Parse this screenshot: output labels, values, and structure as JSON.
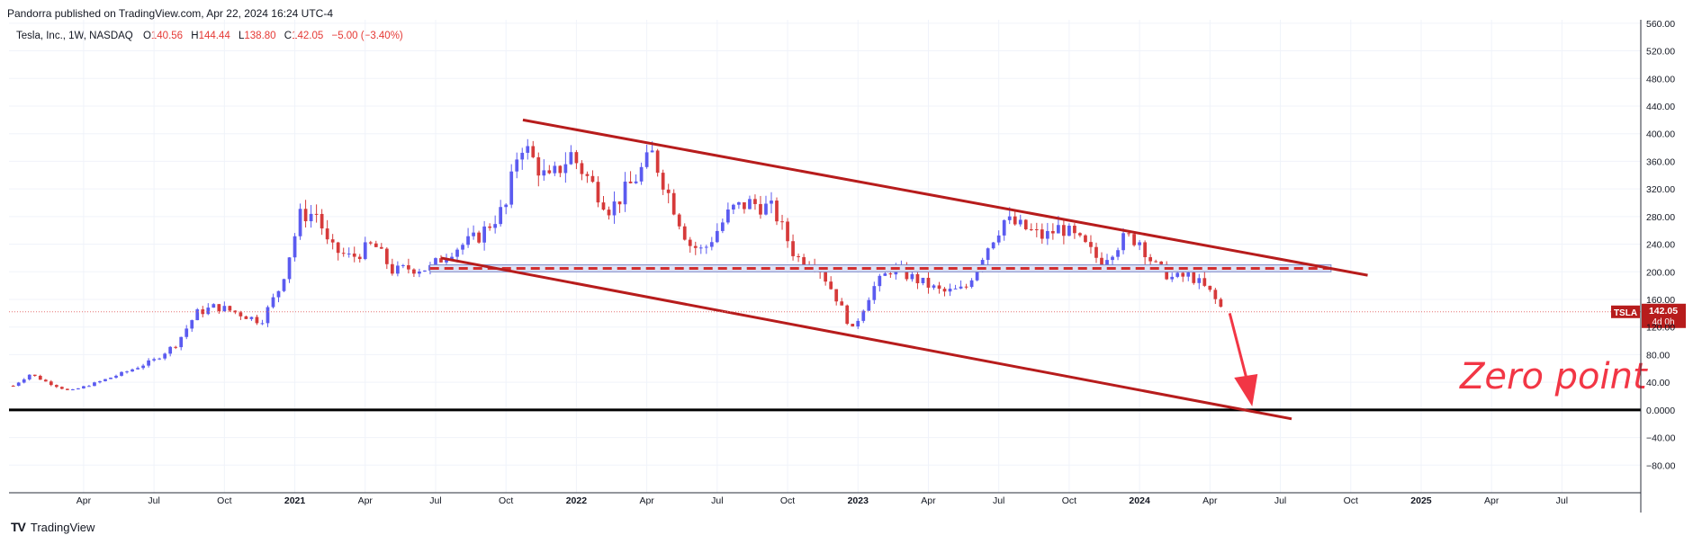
{
  "header": {
    "publisher": "Pandorra published on TradingView.com, Apr 22, 2024 16:24 UTC-4"
  },
  "legend": {
    "symbol": "Tesla, Inc., 1W, NASDAQ",
    "o_label": "O",
    "o_value": "140.56",
    "h_label": "H",
    "h_value": "144.44",
    "l_label": "L",
    "l_value": "138.80",
    "c_label": "C",
    "c_value": "142.05",
    "change": "−5.00 (−3.40%)"
  },
  "footer": {
    "logo": "TV",
    "brand": "TradingView"
  },
  "colors": {
    "up": "#5b5bf0",
    "down": "#d63a3a",
    "channel": "#b71c1c",
    "zero": "#000000",
    "arrow": "#f23645",
    "price_tag": "#b71c1c"
  },
  "chart_data": {
    "type": "candlestick",
    "title": "Tesla, Inc., 1W, NASDAQ",
    "ylim": [
      -120,
      565
    ],
    "y_ticks": [
      "560.00",
      "520.00",
      "480.00",
      "440.00",
      "400.00",
      "360.00",
      "320.00",
      "280.00",
      "240.00",
      "200.00",
      "160.00",
      "120.00",
      "80.00",
      "40.00",
      "0.0000",
      "−40.00",
      "−80.00"
    ],
    "y_tick_values": [
      560,
      520,
      480,
      440,
      400,
      360,
      320,
      280,
      240,
      200,
      160,
      120,
      80,
      40,
      0,
      -40,
      -80
    ],
    "x_ticks": [
      {
        "label": "Apr",
        "t": 2020.25
      },
      {
        "label": "Jul",
        "t": 2020.5
      },
      {
        "label": "Oct",
        "t": 2020.75
      },
      {
        "label": "2021",
        "t": 2021.0
      },
      {
        "label": "Apr",
        "t": 2021.25
      },
      {
        "label": "Jul",
        "t": 2021.5
      },
      {
        "label": "Oct",
        "t": 2021.75
      },
      {
        "label": "2022",
        "t": 2022.0
      },
      {
        "label": "Apr",
        "t": 2022.25
      },
      {
        "label": "Jul",
        "t": 2022.5
      },
      {
        "label": "Oct",
        "t": 2022.75
      },
      {
        "label": "2023",
        "t": 2023.0
      },
      {
        "label": "Apr",
        "t": 2023.25
      },
      {
        "label": "Jul",
        "t": 2023.5
      },
      {
        "label": "Oct",
        "t": 2023.75
      },
      {
        "label": "2024",
        "t": 2024.0
      },
      {
        "label": "Apr",
        "t": 2024.25
      },
      {
        "label": "Jul",
        "t": 2024.5
      },
      {
        "label": "Oct",
        "t": 2024.75
      },
      {
        "label": "2025",
        "t": 2025.0
      },
      {
        "label": "Apr",
        "t": 2025.25
      },
      {
        "label": "Jul",
        "t": 2025.5
      }
    ],
    "price_path": [
      [
        2020.0,
        35
      ],
      [
        2020.06,
        52
      ],
      [
        2020.12,
        40
      ],
      [
        2020.2,
        27
      ],
      [
        2020.3,
        40
      ],
      [
        2020.4,
        55
      ],
      [
        2020.5,
        72
      ],
      [
        2020.58,
        96
      ],
      [
        2020.65,
        140
      ],
      [
        2020.72,
        150
      ],
      [
        2020.8,
        140
      ],
      [
        2020.88,
        128
      ],
      [
        2020.95,
        180
      ],
      [
        2021.02,
        282
      ],
      [
        2021.08,
        285
      ],
      [
        2021.12,
        235
      ],
      [
        2021.2,
        220
      ],
      [
        2021.28,
        240
      ],
      [
        2021.35,
        200
      ],
      [
        2021.4,
        205
      ],
      [
        2021.48,
        205
      ],
      [
        2021.55,
        230
      ],
      [
        2021.65,
        250
      ],
      [
        2021.75,
        295
      ],
      [
        2021.8,
        390
      ],
      [
        2021.85,
        360
      ],
      [
        2021.9,
        330
      ],
      [
        2021.98,
        370
      ],
      [
        2022.05,
        330
      ],
      [
        2022.12,
        290
      ],
      [
        2022.2,
        330
      ],
      [
        2022.27,
        370
      ],
      [
        2022.33,
        310
      ],
      [
        2022.4,
        240
      ],
      [
        2022.45,
        230
      ],
      [
        2022.55,
        290
      ],
      [
        2022.62,
        300
      ],
      [
        2022.7,
        290
      ],
      [
        2022.78,
        220
      ],
      [
        2022.85,
        215
      ],
      [
        2022.92,
        165
      ],
      [
        2022.98,
        115
      ],
      [
        2023.05,
        175
      ],
      [
        2023.12,
        205
      ],
      [
        2023.2,
        190
      ],
      [
        2023.3,
        170
      ],
      [
        2023.38,
        175
      ],
      [
        2023.45,
        230
      ],
      [
        2023.52,
        275
      ],
      [
        2023.58,
        265
      ],
      [
        2023.66,
        250
      ],
      [
        2023.72,
        265
      ],
      [
        2023.8,
        240
      ],
      [
        2023.86,
        215
      ],
      [
        2023.95,
        250
      ],
      [
        2024.0,
        245
      ],
      [
        2024.05,
        210
      ],
      [
        2024.12,
        190
      ],
      [
        2024.18,
        195
      ],
      [
        2024.25,
        170
      ],
      [
        2024.3,
        142
      ]
    ],
    "trend_upper": {
      "start": [
        2021.81,
        420
      ],
      "end": [
        2024.81,
        195
      ]
    },
    "trend_lower": {
      "start": [
        2021.52,
        220
      ],
      "end": [
        2024.54,
        -13
      ]
    },
    "resistance_band": {
      "start": 2021.48,
      "end": 2024.68,
      "top": 210,
      "bottom": 200
    },
    "zero_line": 0,
    "last_price": {
      "symbol": "TSLA",
      "value": "142.05",
      "countdown": "4d 0h",
      "v": 142.05
    },
    "arrow": {
      "from": [
        2024.32,
        140
      ],
      "to": [
        2024.4,
        5
      ]
    },
    "annotation": "Zero point"
  }
}
